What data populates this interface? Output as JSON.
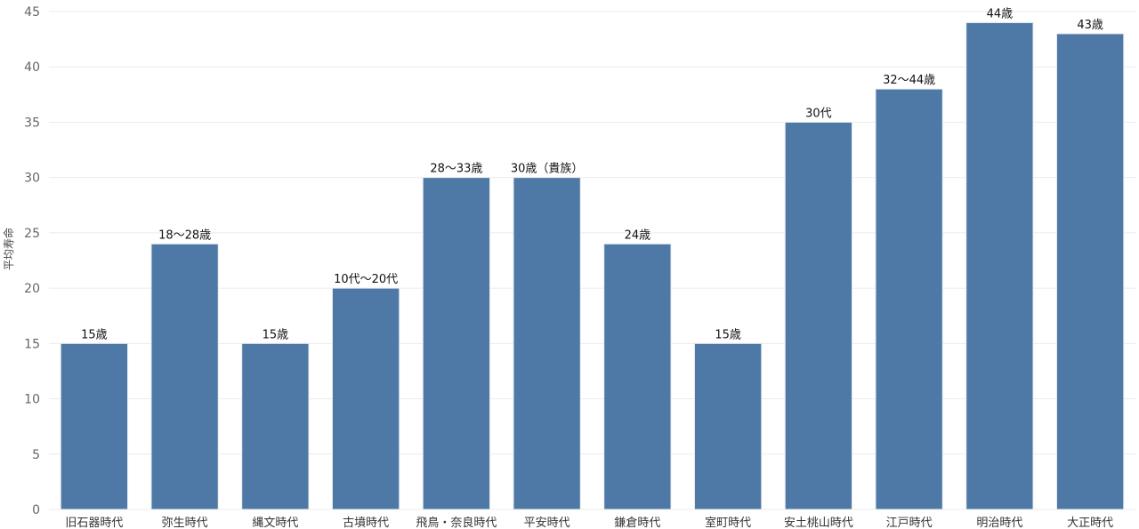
{
  "chart_data": {
    "type": "bar",
    "ylabel": "平均寿命",
    "ylim": [
      0,
      45
    ],
    "yticks": [
      0,
      5,
      10,
      15,
      20,
      25,
      30,
      35,
      40,
      45
    ],
    "grid": true,
    "categories": [
      "旧石器時代",
      "弥生時代",
      "縄文時代",
      "古墳時代",
      "飛鳥・奈良時代",
      "平安時代",
      "鎌倉時代",
      "室町時代",
      "安土桃山時代",
      "江戸時代",
      "明治時代",
      "大正時代"
    ],
    "values": [
      15,
      24,
      15,
      20,
      30,
      30,
      24,
      15,
      35,
      38,
      44,
      43
    ],
    "data_labels": [
      "15歳",
      "18〜28歳",
      "15歳",
      "10代〜20代",
      "28〜33歳",
      "30歳（貴族）",
      "24歳",
      "15歳",
      "30代",
      "32〜44歳",
      "44歳",
      "43歳"
    ],
    "colors": {
      "bar": "#4e79a7"
    }
  }
}
